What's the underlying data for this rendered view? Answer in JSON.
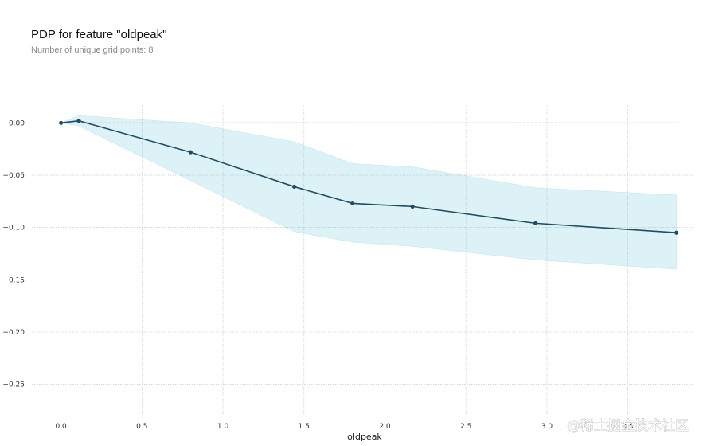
{
  "chart_data": {
    "type": "line",
    "title": "PDP for feature \"oldpeak\"",
    "subtitle": "Number of unique grid points: 8",
    "xlabel": "oldpeak",
    "ylabel": "",
    "xlim": [
      -0.18,
      3.9
    ],
    "ylim": [
      -0.28,
      0.017
    ],
    "x_ticks": [
      0.0,
      0.5,
      1.0,
      1.5,
      2.0,
      2.5,
      3.0,
      3.5
    ],
    "x_tick_labels": [
      "0.0",
      "0.5",
      "1.0",
      "1.5",
      "2.0",
      "2.5",
      "3.0",
      "3.5"
    ],
    "y_ticks": [
      0.0,
      -0.05,
      -0.1,
      -0.15,
      -0.2,
      -0.25
    ],
    "y_tick_labels": [
      "0.00",
      "−0.05",
      "−0.10",
      "−0.15",
      "−0.20",
      "−0.25"
    ],
    "grid": true,
    "series": [
      {
        "x": [
          0.0,
          0.11,
          0.8,
          1.44,
          1.8,
          2.17,
          2.93,
          3.8
        ],
        "values": [
          0.0,
          0.002,
          -0.028,
          -0.061,
          -0.077,
          -0.08,
          -0.096,
          -0.105
        ],
        "upper": [
          0.0,
          0.007,
          0.0,
          -0.018,
          -0.039,
          -0.042,
          -0.062,
          -0.069
        ],
        "lower": [
          0.0,
          -0.003,
          -0.055,
          -0.104,
          -0.114,
          -0.118,
          -0.131,
          -0.14
        ],
        "color": "#1f4e5f",
        "band_color": "#66c2d7"
      }
    ],
    "reference_line": {
      "y": 0.0,
      "style": "dashed",
      "color": "#d24b43"
    }
  },
  "watermark": "@稀土掘金技术社区"
}
